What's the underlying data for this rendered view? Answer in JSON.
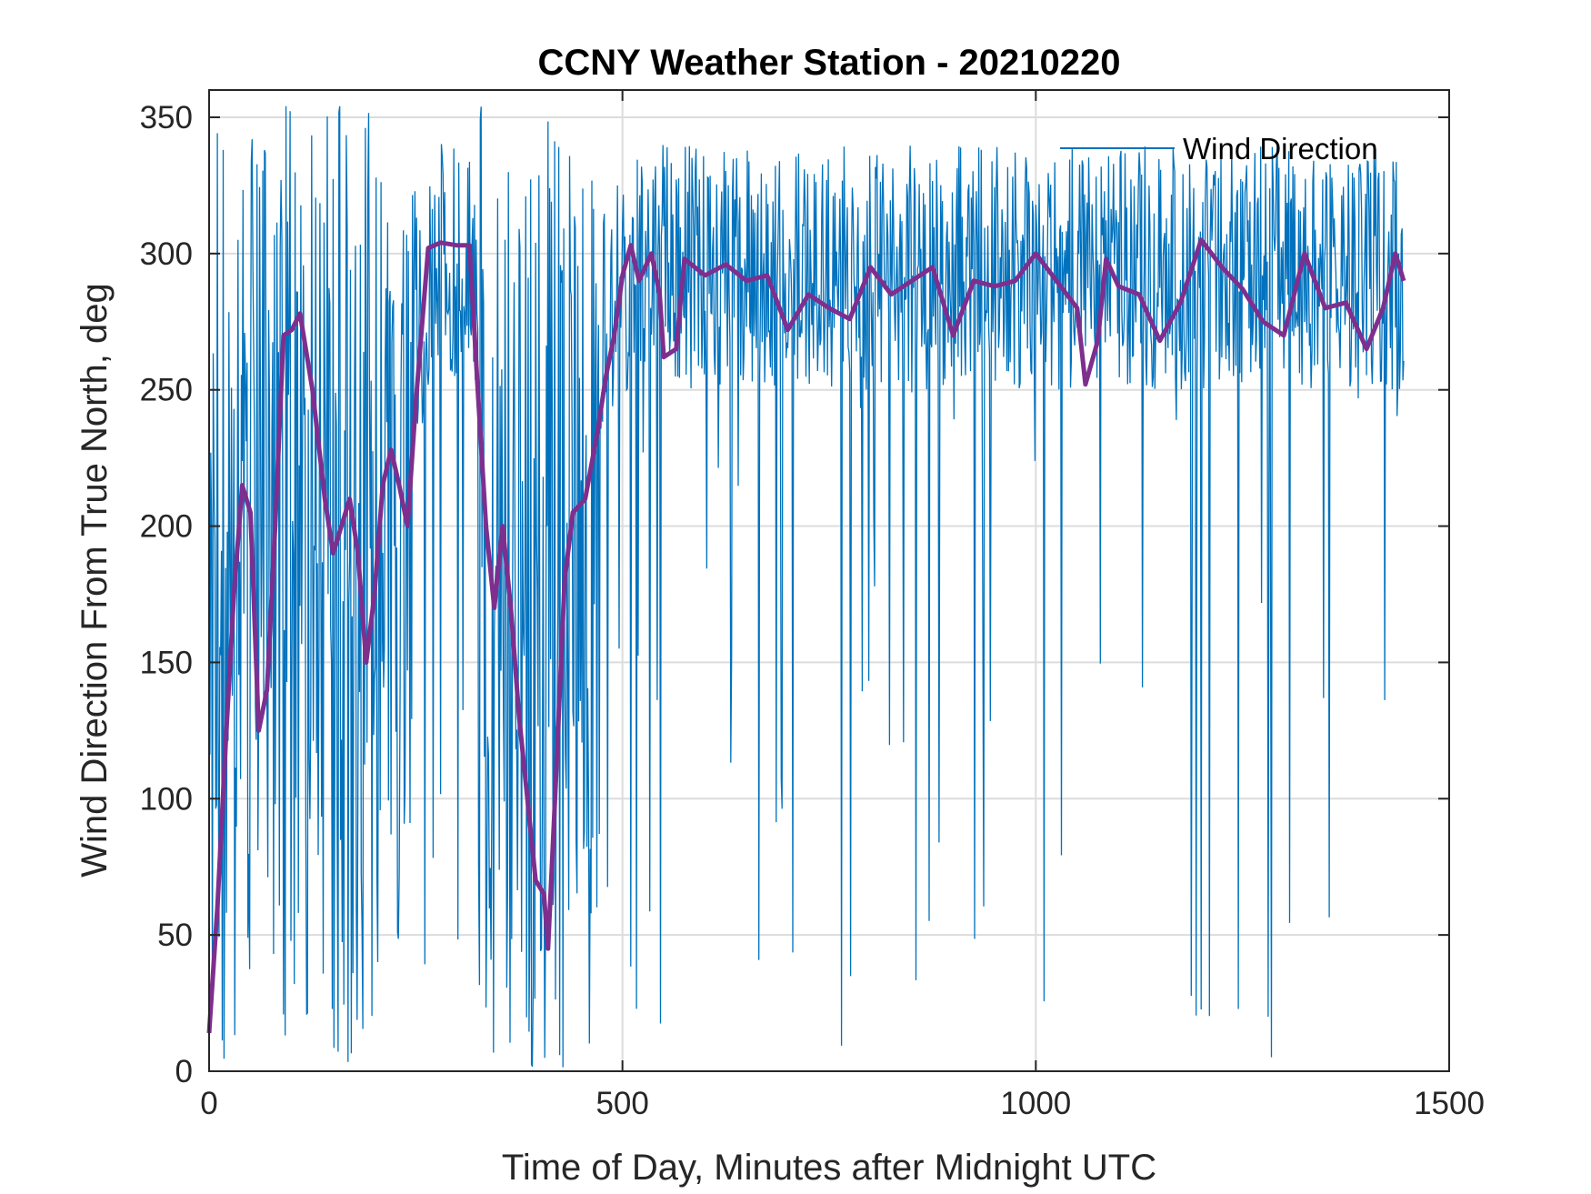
{
  "chart_data": {
    "type": "line",
    "title": "CCNY Weather Station - 20210220",
    "xlabel": "Time of Day, Minutes after Midnight UTC",
    "ylabel": "Wind Direction From True North, deg",
    "xlim": [
      0,
      1500
    ],
    "ylim": [
      0,
      360
    ],
    "x_ticks": [
      0,
      500,
      1000,
      1500
    ],
    "y_ticks": [
      0,
      50,
      100,
      150,
      200,
      250,
      300,
      350
    ],
    "x_tick_labels": [
      "0",
      "500",
      "1000",
      "1500"
    ],
    "y_tick_labels": [
      "0",
      "50",
      "100",
      "150",
      "200",
      "250",
      "300",
      "350"
    ],
    "grid": true,
    "legend": {
      "position": "top-right",
      "entries": [
        "Wind Direction"
      ]
    },
    "series": [
      {
        "name": "Wind Direction",
        "color": "#0072BD",
        "style": "thin",
        "sample_interval_min": 1,
        "x_range": [
          0,
          1445
        ],
        "envelope": [
          {
            "x": 0,
            "y": 180
          },
          {
            "x": 60,
            "y": 180
          },
          {
            "x": 120,
            "y": 200
          },
          {
            "x": 180,
            "y": 210
          },
          {
            "x": 240,
            "y": 250
          },
          {
            "x": 270,
            "y": 300
          },
          {
            "x": 320,
            "y": 300
          },
          {
            "x": 350,
            "y": 150
          },
          {
            "x": 400,
            "y": 120
          },
          {
            "x": 450,
            "y": 250
          },
          {
            "x": 500,
            "y": 295
          },
          {
            "x": 1445,
            "y": 295
          }
        ]
      },
      {
        "name": "",
        "color": "#7E2F8E",
        "style": "thick",
        "points": [
          {
            "x": 0,
            "y": 14
          },
          {
            "x": 10,
            "y": 60
          },
          {
            "x": 20,
            "y": 120
          },
          {
            "x": 30,
            "y": 175
          },
          {
            "x": 40,
            "y": 215
          },
          {
            "x": 50,
            "y": 205
          },
          {
            "x": 60,
            "y": 125
          },
          {
            "x": 70,
            "y": 140
          },
          {
            "x": 80,
            "y": 200
          },
          {
            "x": 90,
            "y": 270
          },
          {
            "x": 100,
            "y": 272
          },
          {
            "x": 110,
            "y": 278
          },
          {
            "x": 125,
            "y": 250
          },
          {
            "x": 140,
            "y": 210
          },
          {
            "x": 150,
            "y": 190
          },
          {
            "x": 160,
            "y": 200
          },
          {
            "x": 170,
            "y": 210
          },
          {
            "x": 180,
            "y": 190
          },
          {
            "x": 190,
            "y": 150
          },
          {
            "x": 200,
            "y": 175
          },
          {
            "x": 210,
            "y": 215
          },
          {
            "x": 220,
            "y": 228
          },
          {
            "x": 230,
            "y": 215
          },
          {
            "x": 240,
            "y": 200
          },
          {
            "x": 250,
            "y": 245
          },
          {
            "x": 265,
            "y": 302
          },
          {
            "x": 280,
            "y": 304
          },
          {
            "x": 300,
            "y": 303
          },
          {
            "x": 315,
            "y": 303
          },
          {
            "x": 325,
            "y": 250
          },
          {
            "x": 335,
            "y": 200
          },
          {
            "x": 345,
            "y": 170
          },
          {
            "x": 355,
            "y": 200
          },
          {
            "x": 365,
            "y": 170
          },
          {
            "x": 375,
            "y": 130
          },
          {
            "x": 385,
            "y": 100
          },
          {
            "x": 395,
            "y": 70
          },
          {
            "x": 405,
            "y": 65
          },
          {
            "x": 410,
            "y": 45
          },
          {
            "x": 420,
            "y": 110
          },
          {
            "x": 430,
            "y": 180
          },
          {
            "x": 440,
            "y": 205
          },
          {
            "x": 455,
            "y": 210
          },
          {
            "x": 470,
            "y": 235
          },
          {
            "x": 480,
            "y": 255
          },
          {
            "x": 490,
            "y": 270
          },
          {
            "x": 500,
            "y": 292
          },
          {
            "x": 510,
            "y": 303
          },
          {
            "x": 520,
            "y": 290
          },
          {
            "x": 535,
            "y": 300
          },
          {
            "x": 545,
            "y": 285
          },
          {
            "x": 550,
            "y": 262
          },
          {
            "x": 565,
            "y": 265
          },
          {
            "x": 575,
            "y": 298
          },
          {
            "x": 600,
            "y": 292
          },
          {
            "x": 625,
            "y": 296
          },
          {
            "x": 650,
            "y": 290
          },
          {
            "x": 675,
            "y": 292
          },
          {
            "x": 700,
            "y": 272
          },
          {
            "x": 725,
            "y": 285
          },
          {
            "x": 750,
            "y": 280
          },
          {
            "x": 775,
            "y": 276
          },
          {
            "x": 800,
            "y": 295
          },
          {
            "x": 825,
            "y": 285
          },
          {
            "x": 850,
            "y": 290
          },
          {
            "x": 875,
            "y": 295
          },
          {
            "x": 900,
            "y": 270
          },
          {
            "x": 925,
            "y": 290
          },
          {
            "x": 950,
            "y": 288
          },
          {
            "x": 975,
            "y": 290
          },
          {
            "x": 1000,
            "y": 300
          },
          {
            "x": 1025,
            "y": 290
          },
          {
            "x": 1050,
            "y": 280
          },
          {
            "x": 1060,
            "y": 252
          },
          {
            "x": 1075,
            "y": 268
          },
          {
            "x": 1085,
            "y": 298
          },
          {
            "x": 1100,
            "y": 288
          },
          {
            "x": 1125,
            "y": 285
          },
          {
            "x": 1150,
            "y": 268
          },
          {
            "x": 1175,
            "y": 282
          },
          {
            "x": 1200,
            "y": 305
          },
          {
            "x": 1225,
            "y": 295
          },
          {
            "x": 1250,
            "y": 287
          },
          {
            "x": 1275,
            "y": 275
          },
          {
            "x": 1300,
            "y": 270
          },
          {
            "x": 1325,
            "y": 300
          },
          {
            "x": 1350,
            "y": 280
          },
          {
            "x": 1375,
            "y": 282
          },
          {
            "x": 1400,
            "y": 265
          },
          {
            "x": 1420,
            "y": 280
          },
          {
            "x": 1435,
            "y": 300
          },
          {
            "x": 1445,
            "y": 290
          }
        ]
      }
    ]
  }
}
